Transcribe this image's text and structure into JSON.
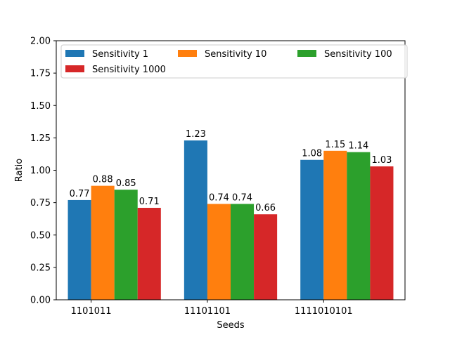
{
  "chart_data": {
    "type": "bar",
    "title": "",
    "xlabel": "Seeds",
    "ylabel": "Ratio",
    "ylim": [
      0,
      2.0
    ],
    "yticks": [
      "0.00",
      "0.25",
      "0.50",
      "0.75",
      "1.00",
      "1.25",
      "1.50",
      "1.75",
      "2.00"
    ],
    "categories": [
      "1101011",
      "11101101",
      "1111010101"
    ],
    "series": [
      {
        "name": "Sensitivity 1",
        "color": "#1f77b4",
        "values": [
          0.77,
          1.23,
          1.08
        ],
        "labels": [
          "0.77",
          "1.23",
          "1.08"
        ]
      },
      {
        "name": "Sensitivity 10",
        "color": "#ff7f0e",
        "values": [
          0.88,
          0.74,
          1.15
        ],
        "labels": [
          "0.88",
          "0.74",
          "1.15"
        ]
      },
      {
        "name": "Sensitivity 100",
        "color": "#2ca02c",
        "values": [
          0.85,
          0.74,
          1.14
        ],
        "labels": [
          "0.85",
          "0.74",
          "1.14"
        ]
      },
      {
        "name": "Sensitivity 1000",
        "color": "#d62728",
        "values": [
          0.71,
          0.66,
          1.03
        ],
        "labels": [
          "0.71",
          "0.66",
          "1.03"
        ]
      }
    ],
    "grid": false,
    "legend": "top, 3 columns"
  }
}
